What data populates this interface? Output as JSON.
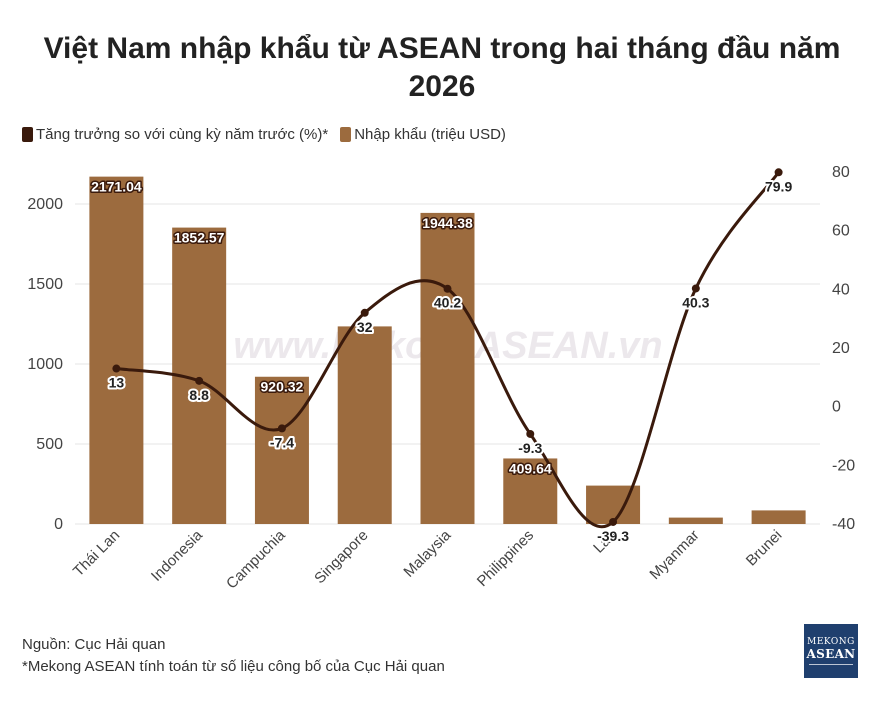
{
  "title_line1": "Việt Nam nhập khẩu từ ASEAN trong hai tháng đầu năm",
  "title_line2": "2026",
  "legend": {
    "line_label": "Tăng trưởng so với cùng kỳ năm trước (%)*",
    "bar_label": "Nhập khẩu (triệu USD)"
  },
  "watermark": "www.MekongASEAN.vn",
  "footer": {
    "source": "Nguồn: Cục Hải quan",
    "note": "*Mekong ASEAN tính toán từ số liệu công bố của Cục Hải quan"
  },
  "logo": {
    "line1": "MEKONG",
    "line2": "ASEAN"
  },
  "colors": {
    "bar": "#9c6b3e",
    "line": "#3a1a0c",
    "grid": "#e4e4e4"
  },
  "chart_data": {
    "type": "bar",
    "categories": [
      "Thái Lan",
      "Indonesia",
      "Campuchia",
      "Singapore",
      "Malaysia",
      "Philippines",
      "Lào",
      "Myanmar",
      "Brunei"
    ],
    "series": [
      {
        "name": "Nhập khẩu (triệu USD)",
        "type": "bar",
        "axis": "left",
        "values": [
          2171.04,
          1852.57,
          920.32,
          1235,
          1944.38,
          409.64,
          240,
          40,
          85
        ],
        "labels": [
          "2171.04",
          "1852.57",
          "920.32",
          "",
          "1944.38",
          "409.64",
          "",
          "",
          ""
        ]
      },
      {
        "name": "Tăng trưởng so với cùng kỳ năm trước (%)*",
        "type": "line",
        "axis": "right",
        "values": [
          13,
          8.8,
          -7.4,
          32,
          40.2,
          -9.3,
          -39.3,
          40.3,
          79.9
        ],
        "labels": [
          "13",
          "8.8",
          "-7.4",
          "32",
          "40.2",
          "-9.3",
          "-39.3",
          "40.3",
          "79.9"
        ]
      }
    ],
    "y_left": {
      "ylim": [
        0,
        2200
      ],
      "ticks": [
        0,
        500,
        1000,
        1500,
        2000
      ]
    },
    "y_right": {
      "ylim": [
        -40,
        80
      ],
      "ticks": [
        -40,
        -20,
        0,
        20,
        40,
        60,
        80
      ]
    },
    "grid": true,
    "legend_position": "top-left"
  }
}
